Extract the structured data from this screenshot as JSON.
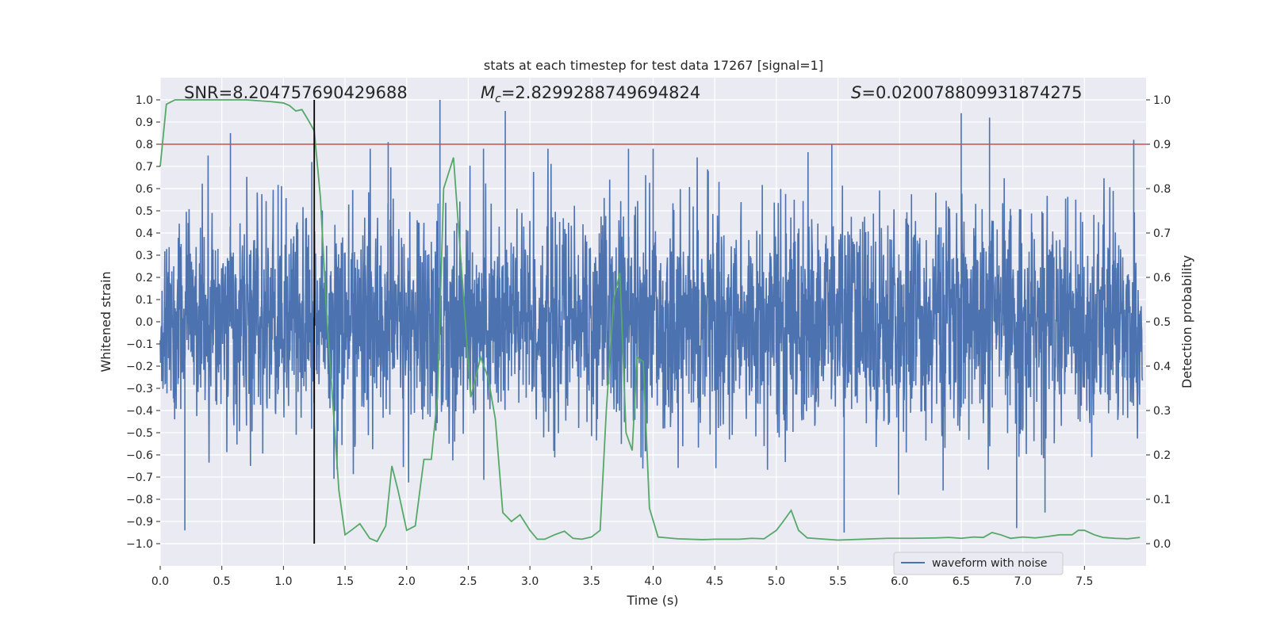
{
  "chart_data": {
    "type": "line",
    "title": "stats at each timestep for test data 17267 [signal=1]",
    "xlabel": "Time (s)",
    "ylabel_left": "Whitened strain",
    "ylabel_right": "Detection probability",
    "xlim": [
      0.0,
      8.0
    ],
    "ylim_left": [
      -1.1,
      1.1
    ],
    "ylim_right": [
      -0.05,
      1.05
    ],
    "x_ticks": [
      0.0,
      0.5,
      1.0,
      1.5,
      2.0,
      2.5,
      3.0,
      3.5,
      4.0,
      4.5,
      5.0,
      5.5,
      6.0,
      6.5,
      7.0,
      7.5
    ],
    "x_tick_labels": [
      "0.0",
      "0.5",
      "1.0",
      "1.5",
      "2.0",
      "2.5",
      "3.0",
      "3.5",
      "4.0",
      "4.5",
      "5.0",
      "5.5",
      "6.0",
      "6.5",
      "7.0",
      "7.5"
    ],
    "y_left_ticks": [
      1.0,
      0.9,
      0.8,
      0.7,
      0.6,
      0.5,
      0.4,
      0.3,
      0.2,
      0.1,
      0.0,
      -0.1,
      -0.2,
      -0.3,
      -0.4,
      -0.5,
      -0.6,
      -0.7,
      -0.8,
      -0.9,
      -1.0
    ],
    "y_left_tick_labels": [
      "1.0",
      "0.9",
      "0.8",
      "0.7",
      "0.6",
      "0.5",
      "0.4",
      "0.3",
      "0.2",
      "0.1",
      "0.0",
      "−0.1",
      "−0.2",
      "−0.3",
      "−0.4",
      "−0.5",
      "−0.6",
      "−0.7",
      "−0.8",
      "−0.9",
      "−1.0"
    ],
    "y_right_ticks": [
      1.0,
      0.9,
      0.8,
      0.7,
      0.6,
      0.5,
      0.4,
      0.3,
      0.2,
      0.1,
      0.0
    ],
    "y_right_tick_labels": [
      "1.0",
      "0.9",
      "0.8",
      "0.7",
      "0.6",
      "0.5",
      "0.4",
      "0.3",
      "0.2",
      "0.1",
      "0.0"
    ],
    "grid": true,
    "annotations": {
      "snr": "SNR=8.204757690429688",
      "mc_prefix": "M",
      "mc_sub": "c",
      "mc_value": "=2.8299288749694824",
      "s_prefix": "S",
      "s_value": "=0.020078809931874275"
    },
    "threshold_right": 0.9,
    "vertical_marker_x": 1.25,
    "legend": {
      "placement": "lower-right",
      "entries": [
        "waveform with noise"
      ]
    },
    "waveform_envelope_peaks": [
      {
        "x": 0.57,
        "y": 0.85
      },
      {
        "x": 0.2,
        "y": -0.94
      },
      {
        "x": 1.23,
        "y": 0.72
      },
      {
        "x": 1.85,
        "y": 0.81
      },
      {
        "x": 2.27,
        "y": 1.0
      },
      {
        "x": 2.8,
        "y": 0.95
      },
      {
        "x": 3.8,
        "y": 0.78
      },
      {
        "x": 4.0,
        "y": 0.78
      },
      {
        "x": 5.45,
        "y": 0.8
      },
      {
        "x": 5.55,
        "y": -0.95
      },
      {
        "x": 6.5,
        "y": 0.94
      },
      {
        "x": 6.73,
        "y": 0.92
      },
      {
        "x": 7.9,
        "y": 0.82
      },
      {
        "x": 6.95,
        "y": -0.93
      },
      {
        "x": 7.18,
        "y": -0.86
      }
    ],
    "series": [
      {
        "name": "waveform with noise",
        "axis": "left",
        "color": "#4c72b0",
        "rms": 0.25
      },
      {
        "axis": "right",
        "color": "#55a868",
        "x": [
          0.0,
          0.05,
          0.12,
          0.2,
          0.3,
          0.4,
          0.5,
          0.6,
          0.7,
          0.8,
          0.9,
          1.0,
          1.05,
          1.1,
          1.15,
          1.2,
          1.25,
          1.3,
          1.35,
          1.4,
          1.45,
          1.5,
          1.55,
          1.62,
          1.7,
          1.76,
          1.83,
          1.88,
          1.93,
          2.0,
          2.07,
          2.14,
          2.2,
          2.25,
          2.3,
          2.38,
          2.45,
          2.52,
          2.6,
          2.66,
          2.72,
          2.78,
          2.85,
          2.92,
          3.0,
          3.06,
          3.12,
          3.2,
          3.28,
          3.35,
          3.42,
          3.5,
          3.57,
          3.62,
          3.68,
          3.73,
          3.78,
          3.83,
          3.87,
          3.92,
          3.97,
          4.04,
          4.12,
          4.2,
          4.3,
          4.4,
          4.5,
          4.6,
          4.7,
          4.8,
          4.9,
          5.0,
          5.05,
          5.12,
          5.18,
          5.25,
          5.35,
          5.5,
          5.7,
          5.9,
          6.1,
          6.3,
          6.4,
          6.5,
          6.6,
          6.68,
          6.75,
          6.82,
          6.9,
          7.0,
          7.1,
          7.2,
          7.3,
          7.4,
          7.45,
          7.5,
          7.58,
          7.65,
          7.75,
          7.85,
          7.95
        ],
        "y": [
          0.85,
          0.99,
          1.0,
          1.0,
          1.0,
          1.0,
          1.0,
          1.0,
          1.0,
          0.998,
          0.996,
          0.993,
          0.987,
          0.975,
          0.978,
          0.955,
          0.93,
          0.78,
          0.52,
          0.32,
          0.12,
          0.02,
          0.03,
          0.045,
          0.012,
          0.005,
          0.04,
          0.175,
          0.12,
          0.03,
          0.04,
          0.19,
          0.19,
          0.33,
          0.8,
          0.87,
          0.6,
          0.33,
          0.42,
          0.375,
          0.28,
          0.07,
          0.05,
          0.065,
          0.03,
          0.01,
          0.01,
          0.02,
          0.028,
          0.012,
          0.01,
          0.015,
          0.03,
          0.3,
          0.55,
          0.61,
          0.25,
          0.21,
          0.42,
          0.41,
          0.08,
          0.015,
          0.013,
          0.011,
          0.01,
          0.009,
          0.01,
          0.01,
          0.01,
          0.012,
          0.011,
          0.03,
          0.048,
          0.075,
          0.03,
          0.013,
          0.011,
          0.008,
          0.01,
          0.012,
          0.012,
          0.013,
          0.014,
          0.012,
          0.015,
          0.014,
          0.025,
          0.02,
          0.012,
          0.015,
          0.013,
          0.016,
          0.02,
          0.02,
          0.03,
          0.03,
          0.02,
          0.014,
          0.012,
          0.011,
          0.014
        ]
      }
    ]
  }
}
